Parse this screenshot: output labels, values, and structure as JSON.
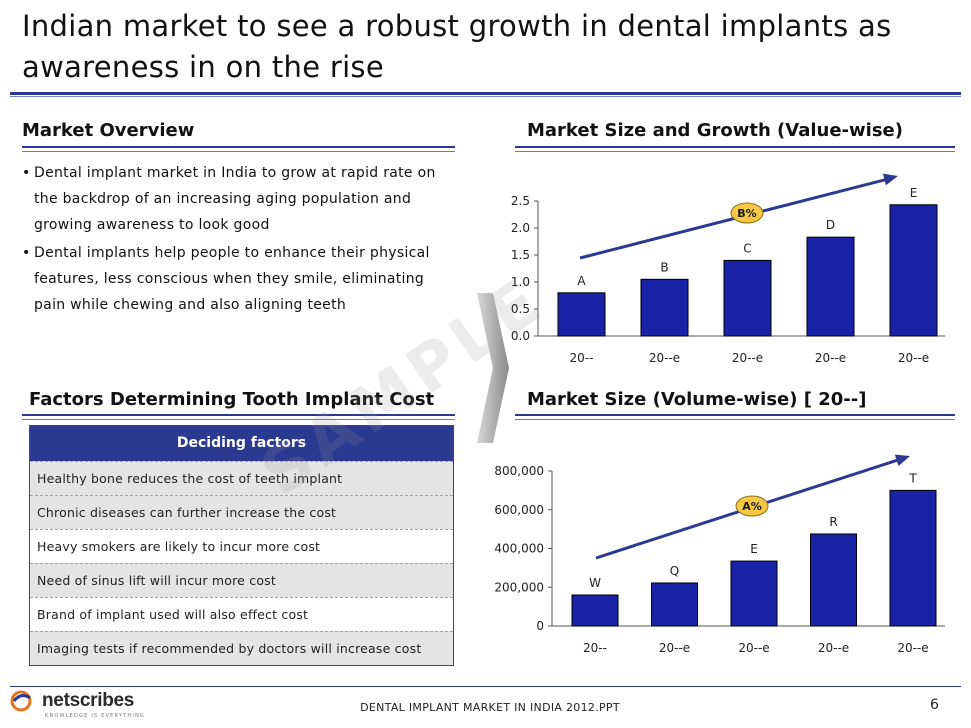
{
  "title": "Indian market to see a robust growth in dental implants as awareness in on the rise",
  "overview": {
    "heading": "Market Overview",
    "bullets": [
      "Dental implant market in India to grow at rapid rate on the backdrop of an increasing aging population and  growing awareness to look good",
      "Dental implants help people to enhance their physical features, less conscious when they smile, eliminating pain while chewing and also aligning teeth"
    ]
  },
  "factors": {
    "heading": "Factors Determining Tooth Implant Cost",
    "table_header": "Deciding factors",
    "rows": [
      "Healthy bone reduces the cost of teeth implant",
      "Chronic diseases can further increase the cost",
      "Heavy smokers are likely to incur more cost",
      "Need of sinus lift will incur more cost",
      "Brand of implant used will also effect cost",
      "Imaging tests if recommended by doctors will increase cost"
    ]
  },
  "watermark": "SAMPLE",
  "chart_data": [
    {
      "type": "bar",
      "title": "Market Size and Growth (Value-wise)",
      "categories": [
        "20--",
        "20--e",
        "20--e",
        "20--e",
        "20--e"
      ],
      "values": [
        0.8,
        1.05,
        1.4,
        1.83,
        2.43
      ],
      "data_labels": [
        "A",
        "B",
        "C",
        "D",
        "E"
      ],
      "ylim": [
        0,
        2.5
      ],
      "yticks": [
        "0.0",
        "0.5",
        "1.0",
        "1.5",
        "2.0",
        "2.5"
      ],
      "ytick_values": [
        0,
        0.5,
        1.0,
        1.5,
        2.0,
        2.5
      ],
      "growth_label": "B%",
      "bar_color": "#1a22a8",
      "badge_color": "#f7c843"
    },
    {
      "type": "bar",
      "title": "Market Size (Volume-wise) [ 20--]",
      "categories": [
        "20--",
        "20--e",
        "20--e",
        "20--e",
        "20--e"
      ],
      "values": [
        160000,
        222000,
        335000,
        475000,
        700000
      ],
      "data_labels": [
        "W",
        "Q",
        "E",
        "R",
        "T"
      ],
      "ylim": [
        0,
        800000
      ],
      "yticks": [
        "0",
        "200,000",
        "400,000",
        "600,000",
        "800,000"
      ],
      "ytick_values": [
        0,
        200000,
        400000,
        600000,
        800000
      ],
      "growth_label": "A%",
      "bar_color": "#1a22a8",
      "badge_color": "#f7c843"
    }
  ],
  "footer": {
    "logo": "netscribes",
    "tagline": "KNOWLEDGE IS EVERYTHING",
    "document": "DENTAL IMPLANT MARKET IN INDIA 2012.PPT",
    "page": "6"
  }
}
